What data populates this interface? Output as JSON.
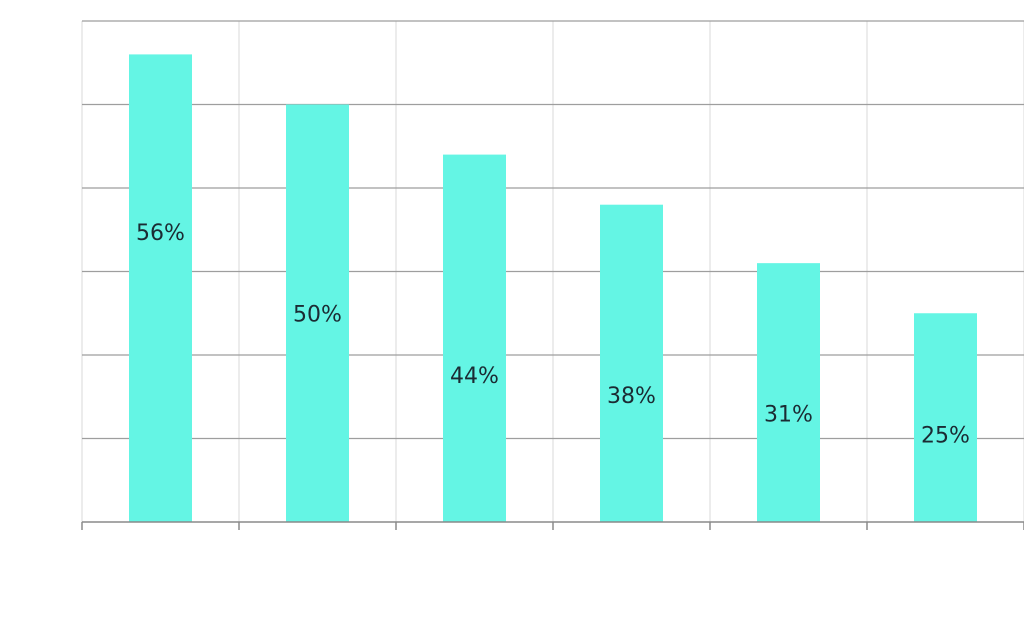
{
  "chart_data": {
    "type": "bar",
    "title": "",
    "xlabel": "",
    "ylabel": "",
    "categories": [
      "",
      "",
      "",
      "",
      "",
      ""
    ],
    "values": [
      56,
      50,
      44,
      38,
      31,
      25
    ],
    "data_labels": [
      "56%",
      "50%",
      "44%",
      "38%",
      "31%",
      "25%"
    ],
    "ylim": [
      0,
      60
    ],
    "grid": true,
    "legend": "none",
    "colors": {
      "bar": "#64f5e4"
    }
  }
}
